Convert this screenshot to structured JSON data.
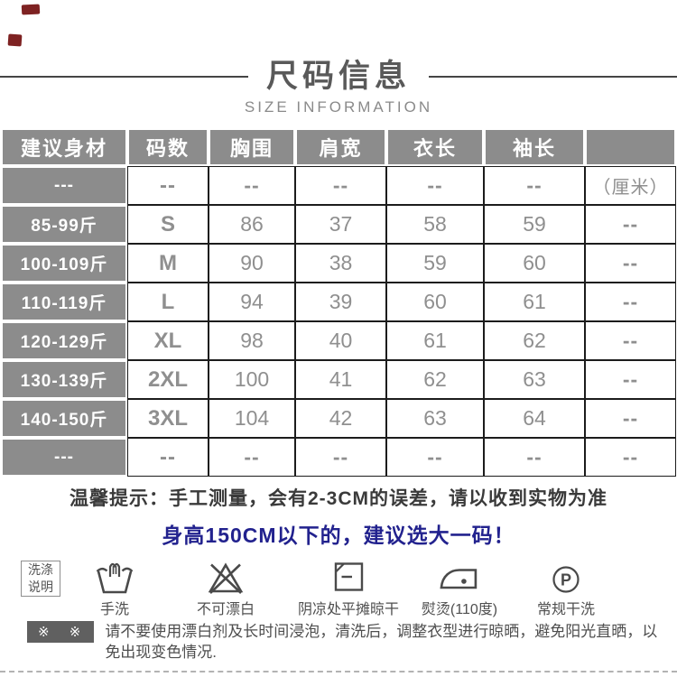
{
  "title": {
    "zh": "尺码信息",
    "en": "SIZE INFORMATION"
  },
  "size_table": {
    "headers": [
      "建议身材",
      "码数",
      "胸围",
      "肩宽",
      "衣长",
      "袖长",
      ""
    ],
    "unit_row": [
      "---",
      "--",
      "--",
      "--",
      "--",
      "--",
      "（厘米）"
    ],
    "rows": [
      [
        "85-99斤",
        "S",
        "86",
        "37",
        "58",
        "59",
        "--"
      ],
      [
        "100-109斤",
        "M",
        "90",
        "38",
        "59",
        "60",
        "--"
      ],
      [
        "110-119斤",
        "L",
        "94",
        "39",
        "60",
        "61",
        "--"
      ],
      [
        "120-129斤",
        "XL",
        "98",
        "40",
        "61",
        "62",
        "--"
      ],
      [
        "130-139斤",
        "2XL",
        "100",
        "41",
        "62",
        "63",
        "--"
      ],
      [
        "140-150斤",
        "3XL",
        "104",
        "42",
        "63",
        "64",
        "--"
      ],
      [
        "---",
        "--",
        "--",
        "--",
        "--",
        "--",
        "--"
      ]
    ]
  },
  "notes": {
    "tip": "温馨提示：手工测量，会有2-3CM的误差，请以收到实物为准",
    "highlight": "身高150CM以下的，建议选大一码！"
  },
  "care": {
    "label_lines": [
      "洗涤",
      "说明"
    ],
    "items": [
      {
        "icon": "hand-wash-icon",
        "label": "手洗"
      },
      {
        "icon": "no-bleach-icon",
        "label": "不可漂白"
      },
      {
        "icon": "dry-flat-shade-icon",
        "label": "阴凉处平摊晾干"
      },
      {
        "icon": "iron-110-icon",
        "label": "熨烫(110度)"
      },
      {
        "icon": "dry-clean-p-icon",
        "label": "常规干洗"
      }
    ]
  },
  "footnote": {
    "marker": "※ ※",
    "text": "请不要使用漂白剂及长时间浸泡，清洗后，调整衣型进行晾晒，避免阳光直晒，以免出现变色情况."
  },
  "colors": {
    "table_gray": "#8c8c8c",
    "table_border": "#1c1c1c",
    "data_text": "#8f8f8f",
    "highlight_blue": "#22228e",
    "icon_stroke": "#4a4a4a",
    "footnote_box": "#606060",
    "artifact_red": "#7e2222"
  }
}
